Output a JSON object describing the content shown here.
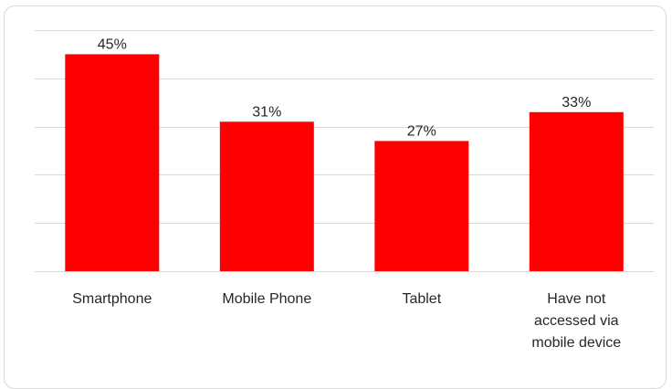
{
  "chart_data": {
    "type": "bar",
    "categories": [
      "Smartphone",
      "Mobile Phone",
      "Tablet",
      "Have not accessed via mobile device"
    ],
    "category_label_lines": [
      [
        "Smartphone"
      ],
      [
        "Mobile Phone"
      ],
      [
        "Tablet"
      ],
      [
        "Have not",
        "accessed via",
        "mobile device"
      ]
    ],
    "values": [
      45,
      31,
      27,
      33
    ],
    "data_labels": [
      "45%",
      "31%",
      "27%",
      "33%"
    ],
    "unit": "%",
    "ylim": [
      0,
      50
    ],
    "grid": true,
    "legend": "none",
    "bar_color": "#ff0000",
    "title": "",
    "xlabel": "",
    "ylabel": ""
  }
}
